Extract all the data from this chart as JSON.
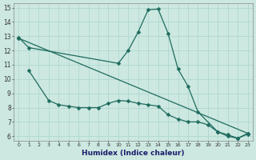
{
  "xlabel": "Humidex (Indice chaleur)",
  "bg_color": "#cce8e0",
  "line_color": "#1e6b5e",
  "grid_color": "#b0d8d0",
  "xlim": [
    -0.5,
    23.5
  ],
  "ylim": [
    5.7,
    15.3
  ],
  "xticks": [
    0,
    1,
    2,
    3,
    4,
    5,
    6,
    7,
    8,
    9,
    10,
    11,
    12,
    13,
    14,
    15,
    16,
    17,
    18,
    19,
    20,
    21,
    22,
    23
  ],
  "yticks": [
    6,
    7,
    8,
    9,
    10,
    11,
    12,
    13,
    14,
    15
  ],
  "line1_x": [
    0,
    1,
    10,
    11,
    12,
    13,
    14,
    15,
    16,
    17,
    18,
    20,
    21,
    22,
    23
  ],
  "line1_y": [
    12.9,
    12.2,
    11.1,
    12.0,
    13.3,
    14.85,
    14.9,
    13.2,
    10.7,
    9.5,
    7.7,
    6.3,
    6.1,
    5.85,
    6.2
  ],
  "line2_x": [
    1,
    3,
    4,
    5,
    6,
    7,
    8,
    9,
    10,
    11,
    12,
    13,
    14,
    15,
    16,
    17,
    18,
    19,
    20,
    21,
    22,
    23
  ],
  "line2_y": [
    10.6,
    8.5,
    8.2,
    8.1,
    8.0,
    8.0,
    8.0,
    8.3,
    8.5,
    8.45,
    8.3,
    8.2,
    8.1,
    7.5,
    7.2,
    7.0,
    7.0,
    6.8,
    6.3,
    6.0,
    5.85,
    6.15
  ],
  "line3_x": [
    0,
    23
  ],
  "line3_y": [
    12.85,
    6.2
  ]
}
